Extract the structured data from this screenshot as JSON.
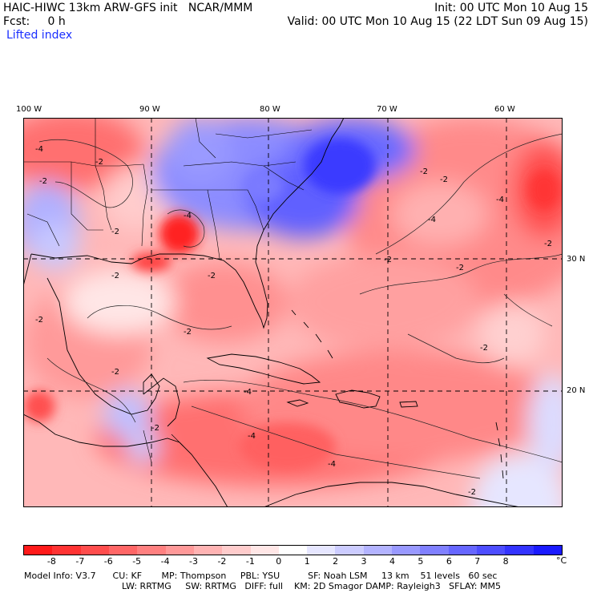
{
  "header": {
    "model_title": "HAIC-HIWC 13km ARW-GFS init   NCAR/MMM",
    "fcst": "Fcst:     0 h",
    "field": "Lifted index",
    "init": "Init: 00 UTC Mon 10 Aug 15",
    "valid": "Valid: 00 UTC Mon 10 Aug 15 (22 LDT Sun 09 Aug 15)"
  },
  "map": {
    "lon_labels": [
      "100 W",
      "90 W",
      "80 W",
      "70 W",
      "60 W"
    ],
    "lat_labels": [
      "30 N",
      "20 N"
    ],
    "contour_labels": [
      "-4",
      "-2",
      "-2",
      "-2",
      "-4",
      "-2",
      "-2",
      "-4",
      "-2",
      "-2",
      "-2",
      "-4",
      "-2",
      "-2",
      "-4",
      "-2",
      "-2",
      "-2",
      "-4",
      "-2",
      "-4",
      "-2",
      "-2"
    ]
  },
  "colorbar": {
    "labels": [
      "-8",
      "-7",
      "-6",
      "-5",
      "-4",
      "-3",
      "-2",
      "-1",
      "0",
      "1",
      "2",
      "3",
      "4",
      "5",
      "6",
      "7",
      "8"
    ],
    "unit": "°C",
    "colors": [
      "#ff1a1a",
      "#ff3333",
      "#ff4d4d",
      "#ff6666",
      "#ff8080",
      "#ff9999",
      "#ffb3b3",
      "#ffcccc",
      "#ffe6e6",
      "#ffffff",
      "#e6e6ff",
      "#ccccff",
      "#b3b3ff",
      "#9999ff",
      "#8080ff",
      "#6666ff",
      "#4d4dff",
      "#3333ff",
      "#1a1aff"
    ]
  },
  "footer": {
    "line1": "Model Info: V3.7      CU: KF       MP: Thompson     PBL: YSU          SF: Noah LSM     13 km    51 levels   60 sec",
    "line2": "LW: RRTMG     SW: RRTMG   DIFF: full    KM: 2D Smagor DAMP: Rayleigh3   SFLAY: MM5"
  }
}
